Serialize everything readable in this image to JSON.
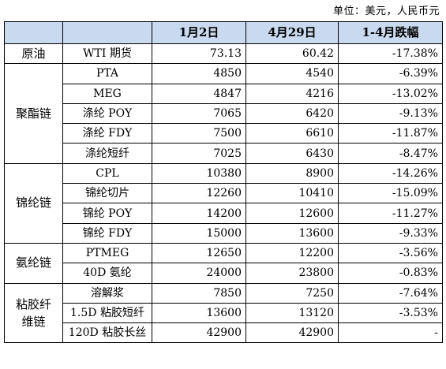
{
  "unit_note": "单位：美元，人民币元",
  "header": {
    "col0": "",
    "col1": "",
    "col2": "1月2日",
    "col3": "4月29日",
    "col4": "1-4月跌幅"
  },
  "groups": [
    {
      "label": "原油",
      "rows": [
        {
          "name": "WTI 期货",
          "jan2": "73.13",
          "apr29": "60.42",
          "change": "-17.38%"
        }
      ]
    },
    {
      "label": "聚酯链",
      "rows": [
        {
          "name": "PTA",
          "jan2": "4850",
          "apr29": "4540",
          "change": "-6.39%"
        },
        {
          "name": "MEG",
          "jan2": "4847",
          "apr29": "4216",
          "change": "-13.02%"
        },
        {
          "name": "涤纶 POY",
          "jan2": "7065",
          "apr29": "6420",
          "change": "-9.13%"
        },
        {
          "name": "涤纶 FDY",
          "jan2": "7500",
          "apr29": "6610",
          "change": "-11.87%"
        },
        {
          "name": "涤纶短纤",
          "jan2": "7025",
          "apr29": "6430",
          "change": "-8.47%"
        }
      ]
    },
    {
      "label": "锦纶链",
      "rows": [
        {
          "name": "CPL",
          "jan2": "10380",
          "apr29": "8900",
          "change": "-14.26%"
        },
        {
          "name": "锦纶切片",
          "jan2": "12260",
          "apr29": "10410",
          "change": "-15.09%"
        },
        {
          "name": "锦纶 POY",
          "jan2": "14200",
          "apr29": "12600",
          "change": "-11.27%"
        },
        {
          "name": "锦纶 FDY",
          "jan2": "15000",
          "apr29": "13600",
          "change": "-9.33%"
        }
      ]
    },
    {
      "label": "氨纶链",
      "rows": [
        {
          "name": "PTMEG",
          "jan2": "12650",
          "apr29": "12200",
          "change": "-3.56%"
        },
        {
          "name": "40D 氨纶",
          "jan2": "24000",
          "apr29": "23800",
          "change": "-0.83%"
        }
      ]
    },
    {
      "label": "粘胶纤维链",
      "rows": [
        {
          "name": "溶解浆",
          "jan2": "7850",
          "apr29": "7250",
          "change": "-7.64%"
        },
        {
          "name": "1.5D 粘胶短纤",
          "jan2": "13600",
          "apr29": "13120",
          "change": "-3.53%"
        },
        {
          "name": "120D 粘胶长丝",
          "jan2": "42900",
          "apr29": "42900",
          "change": "-"
        }
      ]
    }
  ],
  "colors": {
    "header_bg": "#c9d9ef",
    "border": "#000000"
  }
}
